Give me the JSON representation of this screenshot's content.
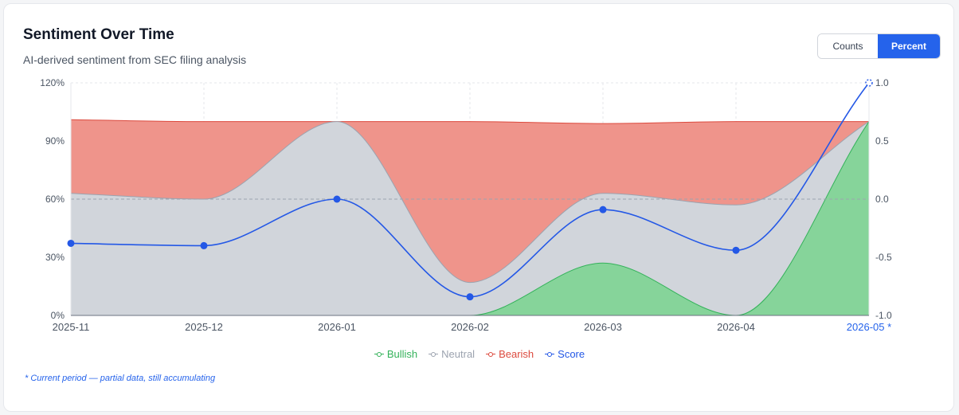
{
  "header": {
    "title": "Sentiment Over Time",
    "subtitle": "AI-derived sentiment from SEC filing analysis"
  },
  "toggle": {
    "options": [
      "Counts",
      "Percent"
    ],
    "selected": "Percent"
  },
  "colors": {
    "bullish_fill": "#86d49a",
    "bullish_line": "#34b25a",
    "neutral_fill": "#d1d5db",
    "neutral_line": "#9ca3af",
    "bearish_fill": "#ef948b",
    "bearish_line": "#dc4a3e",
    "score_line": "#2458e6",
    "accent": "#2563eb",
    "axis_text": "#4b5563",
    "grid": "#e5e7eb"
  },
  "chart_data": {
    "type": "area",
    "stacked": true,
    "categories": [
      "2025-11",
      "2025-12",
      "2026-01",
      "2026-02",
      "2026-03",
      "2026-04",
      "2026-05 *"
    ],
    "current_period_index": 6,
    "y_left": {
      "unit": "%",
      "range": [
        0,
        120
      ],
      "ticks": [
        "0%",
        "30%",
        "60%",
        "90%",
        "120%"
      ]
    },
    "y_right": {
      "range": [
        -1.0,
        1.0
      ],
      "ticks": [
        "-1.0",
        "-0.5",
        "0.0",
        "0.5",
        "1.0"
      ]
    },
    "series": [
      {
        "name": "Bullish",
        "kind": "area",
        "values": [
          0,
          0,
          0,
          0,
          27,
          0,
          100
        ]
      },
      {
        "name": "Neutral",
        "kind": "area",
        "values": [
          63,
          60,
          100,
          17,
          36,
          57,
          0
        ]
      },
      {
        "name": "Bearish",
        "kind": "area",
        "values": [
          38,
          40,
          0,
          83,
          36,
          43,
          0
        ]
      },
      {
        "name": "Score",
        "kind": "line",
        "axis": "right",
        "values": [
          -0.38,
          -0.4,
          0.0,
          -0.84,
          -0.09,
          -0.44,
          1.0
        ]
      }
    ],
    "grid": true,
    "reference_line": 0.0,
    "legend_position": "bottom"
  },
  "footnote": "* Current period — partial data, still accumulating"
}
